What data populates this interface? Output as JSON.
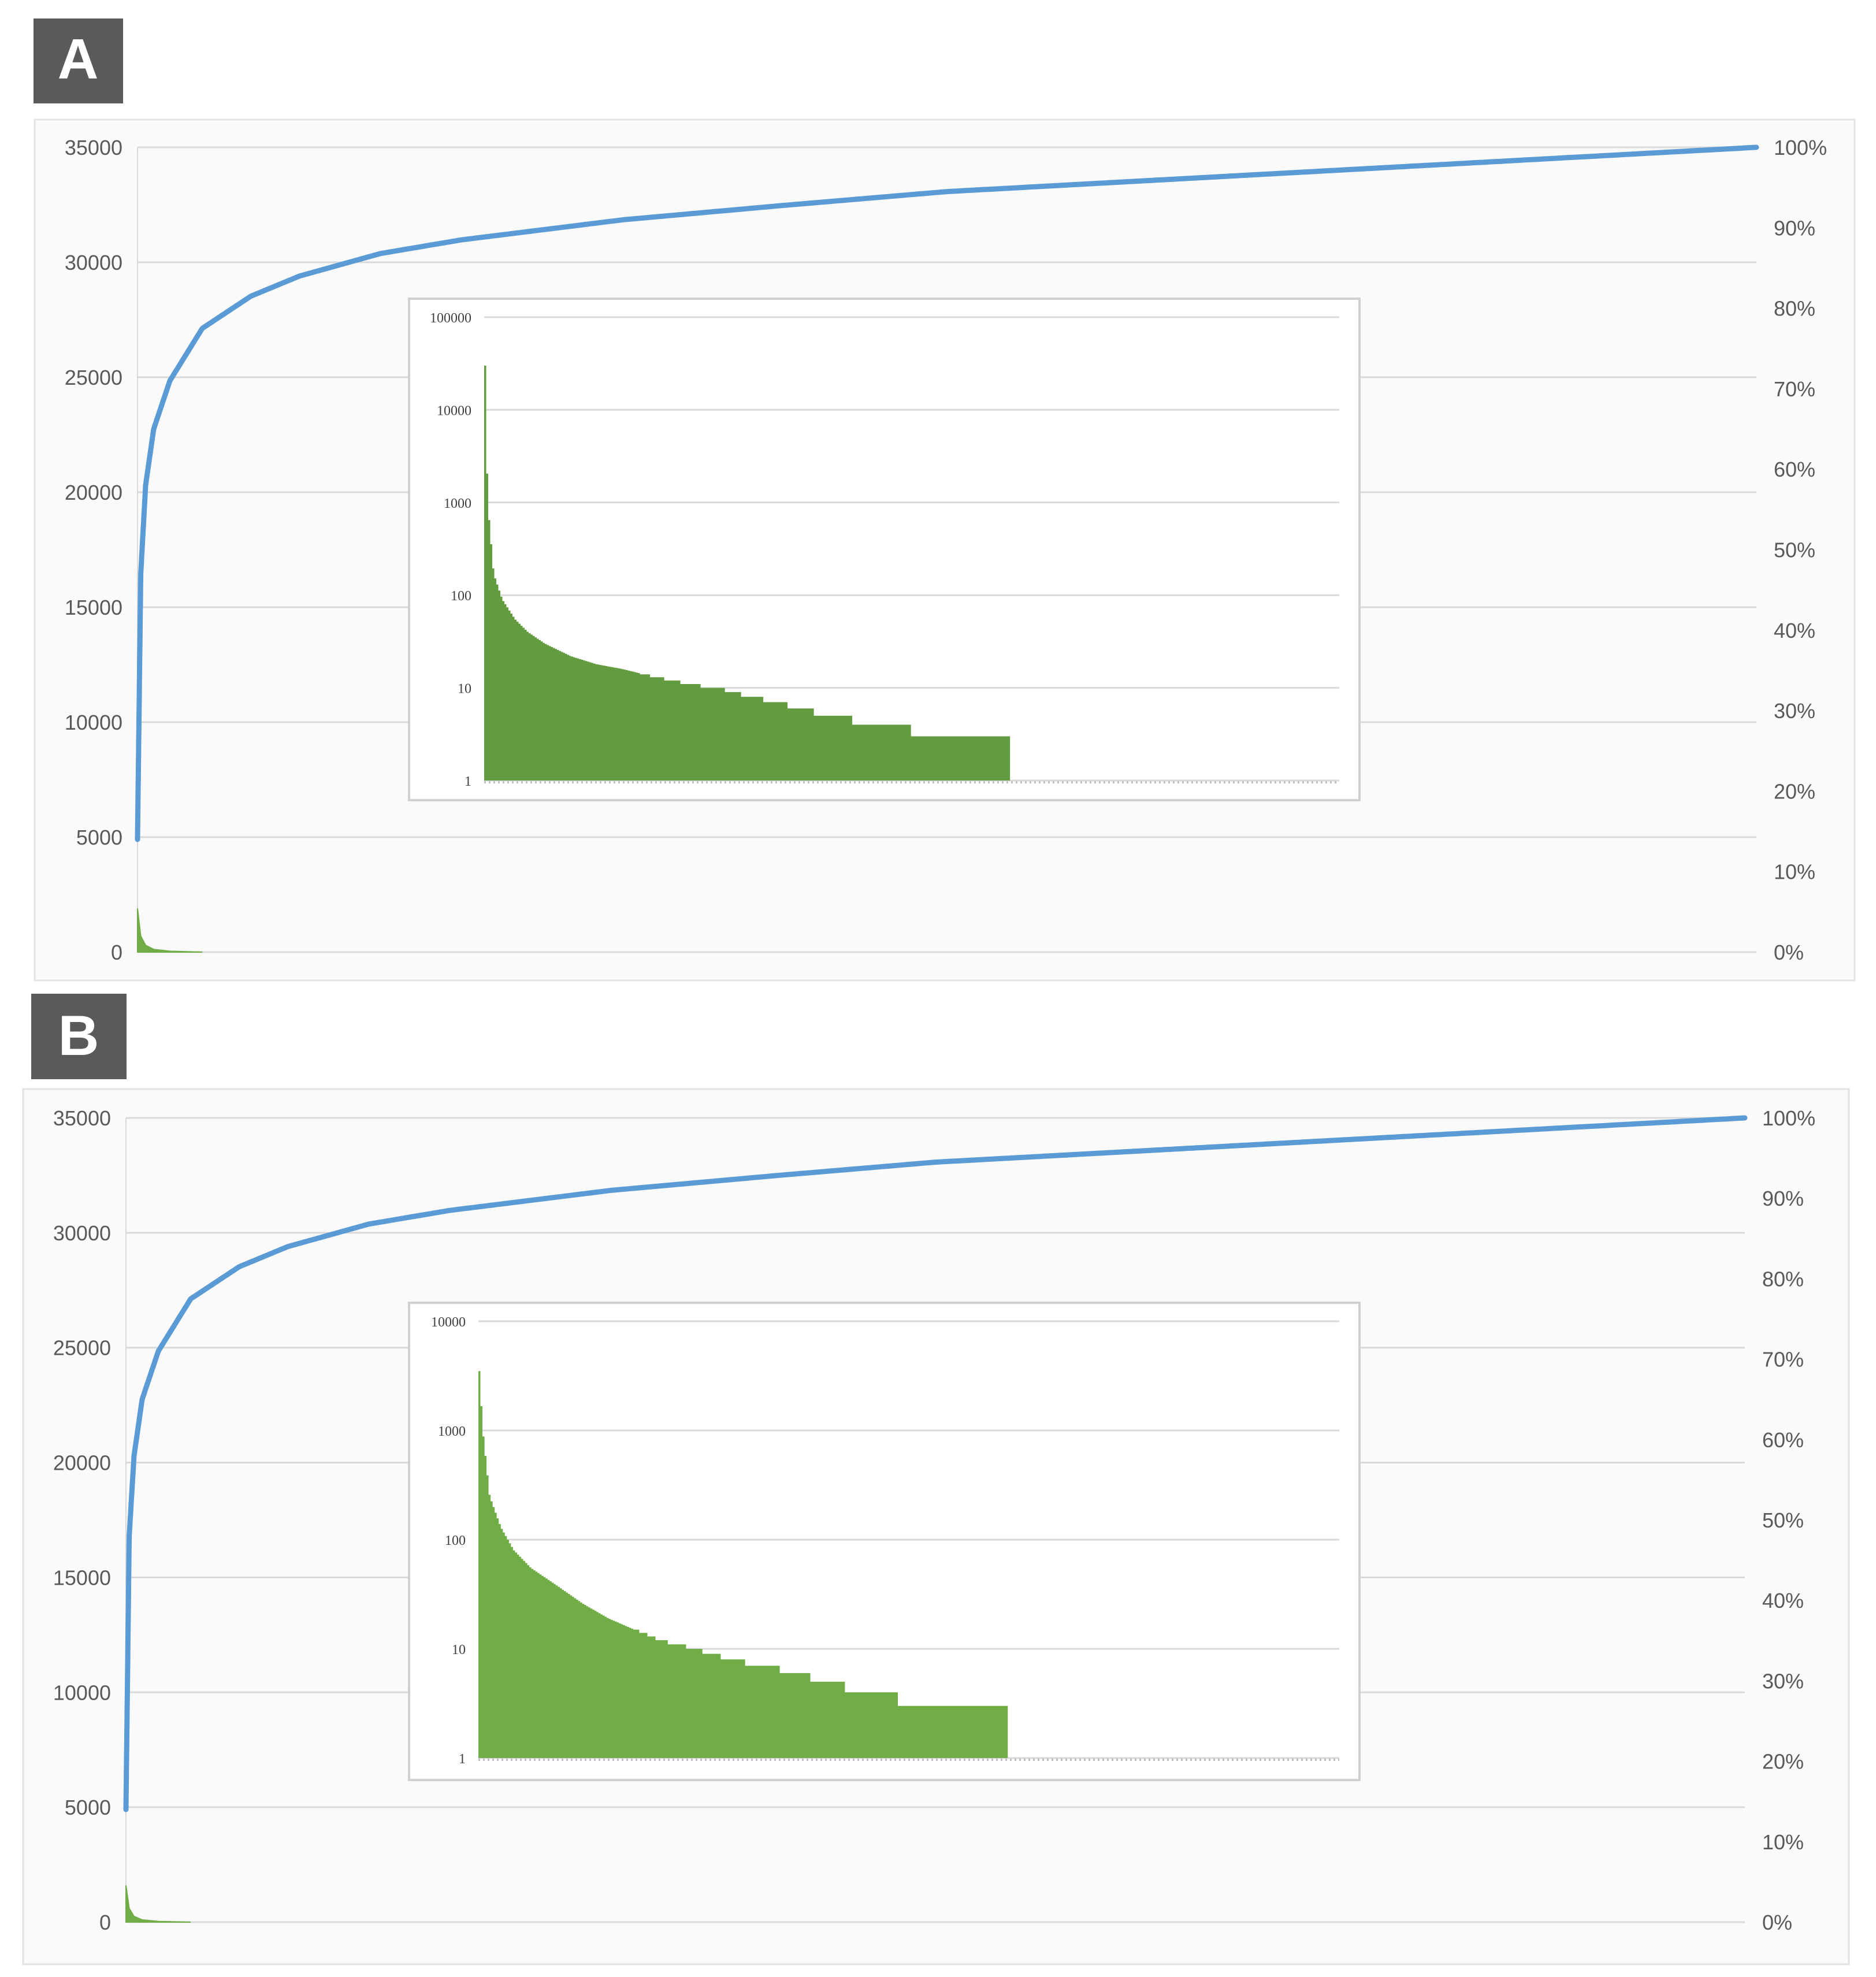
{
  "panels": [
    {
      "label": "A",
      "chart_data": {
        "type": "bar+line",
        "title": "",
        "xlabel": "",
        "y_left": {
          "range": [
            0,
            35000
          ],
          "ticks": [
            "0",
            "5000",
            "10000",
            "15000",
            "20000",
            "25000",
            "30000",
            "35000"
          ]
        },
        "y_right": {
          "range": [
            0,
            1
          ],
          "ticks": [
            "0%",
            "10%",
            "20%",
            "30%",
            "40%",
            "50%",
            "60%",
            "70%",
            "80%",
            "90%",
            "100%"
          ]
        },
        "grid": "horizontal",
        "series": [
          {
            "type": "bar",
            "axis": "left",
            "color": "#70ad47",
            "x": [
              0,
              0.002,
              0.005,
              0.01,
              0.02,
              0.04
            ],
            "values": [
              1900,
              700,
              300,
              120,
              40,
              0
            ]
          },
          {
            "type": "line",
            "axis": "right",
            "color": "#5b9bd5",
            "x": [
              0,
              0.002,
              0.005,
              0.01,
              0.02,
              0.04,
              0.07,
              0.1,
              0.15,
              0.2,
              0.3,
              0.4,
              0.5,
              0.6,
              0.7,
              0.8,
              0.9,
              1.0
            ],
            "values": [
              0.14,
              0.47,
              0.58,
              0.65,
              0.71,
              0.775,
              0.815,
              0.84,
              0.868,
              0.885,
              0.91,
              0.928,
              0.945,
              0.956,
              0.967,
              0.978,
              0.989,
              1.0
            ]
          }
        ],
        "inset": {
          "type": "bar",
          "scale": "log",
          "yrange": [
            1,
            100000
          ],
          "ticks": [
            "1",
            "10",
            "100",
            "1000",
            "10000",
            "100000"
          ],
          "color": "#629b40",
          "end_fraction": 0.615,
          "x": [
            0,
            0.003,
            0.01,
            0.02,
            0.035,
            0.05,
            0.07,
            0.1,
            0.13,
            0.16,
            0.2,
            0.24,
            0.28,
            0.31,
            0.34,
            0.37,
            0.4,
            0.46,
            0.54,
            0.615
          ],
          "values": [
            30000,
            1000,
            170,
            90,
            55,
            40,
            30,
            22,
            18,
            16,
            13,
            11,
            9.5,
            8,
            7,
            6,
            5,
            4,
            3,
            3
          ]
        }
      }
    },
    {
      "label": "B",
      "chart_data": {
        "type": "bar+line",
        "title": "",
        "xlabel": "",
        "y_left": {
          "range": [
            0,
            35000
          ],
          "ticks": [
            "0",
            "5000",
            "10000",
            "15000",
            "20000",
            "25000",
            "30000",
            "35000"
          ]
        },
        "y_right": {
          "range": [
            0,
            1
          ],
          "ticks": [
            "0%",
            "10%",
            "20%",
            "30%",
            "40%",
            "50%",
            "60%",
            "70%",
            "80%",
            "90%",
            "100%"
          ]
        },
        "grid": "horizontal",
        "series": [
          {
            "type": "bar",
            "axis": "left",
            "color": "#70ad47",
            "x": [
              0,
              0.002,
              0.005,
              0.01,
              0.02,
              0.04
            ],
            "values": [
              1600,
              600,
              250,
              100,
              30,
              0
            ]
          },
          {
            "type": "line",
            "axis": "right",
            "color": "#5b9bd5",
            "x": [
              0,
              0.002,
              0.005,
              0.01,
              0.02,
              0.04,
              0.07,
              0.1,
              0.15,
              0.2,
              0.3,
              0.4,
              0.5,
              0.6,
              0.7,
              0.8,
              0.9,
              1.0
            ],
            "values": [
              0.14,
              0.48,
              0.58,
              0.65,
              0.71,
              0.775,
              0.815,
              0.84,
              0.868,
              0.885,
              0.91,
              0.928,
              0.945,
              0.956,
              0.967,
              0.978,
              0.989,
              1.0
            ]
          }
        ],
        "inset": {
          "type": "bar",
          "scale": "log",
          "yrange": [
            1,
            10000
          ],
          "ticks": [
            "1",
            "10",
            "100",
            "1000",
            "10000"
          ],
          "color": "#70ad47",
          "end_fraction": 0.615,
          "x": [
            0,
            0.004,
            0.012,
            0.025,
            0.04,
            0.06,
            0.09,
            0.12,
            0.15,
            0.18,
            0.21,
            0.25,
            0.29,
            0.33,
            0.37,
            0.4,
            0.45,
            0.53,
            0.615
          ],
          "values": [
            3500,
            1000,
            250,
            130,
            80,
            55,
            38,
            26,
            19,
            15,
            12,
            10,
            8,
            7,
            6,
            5,
            4,
            3,
            3
          ]
        }
      }
    }
  ]
}
